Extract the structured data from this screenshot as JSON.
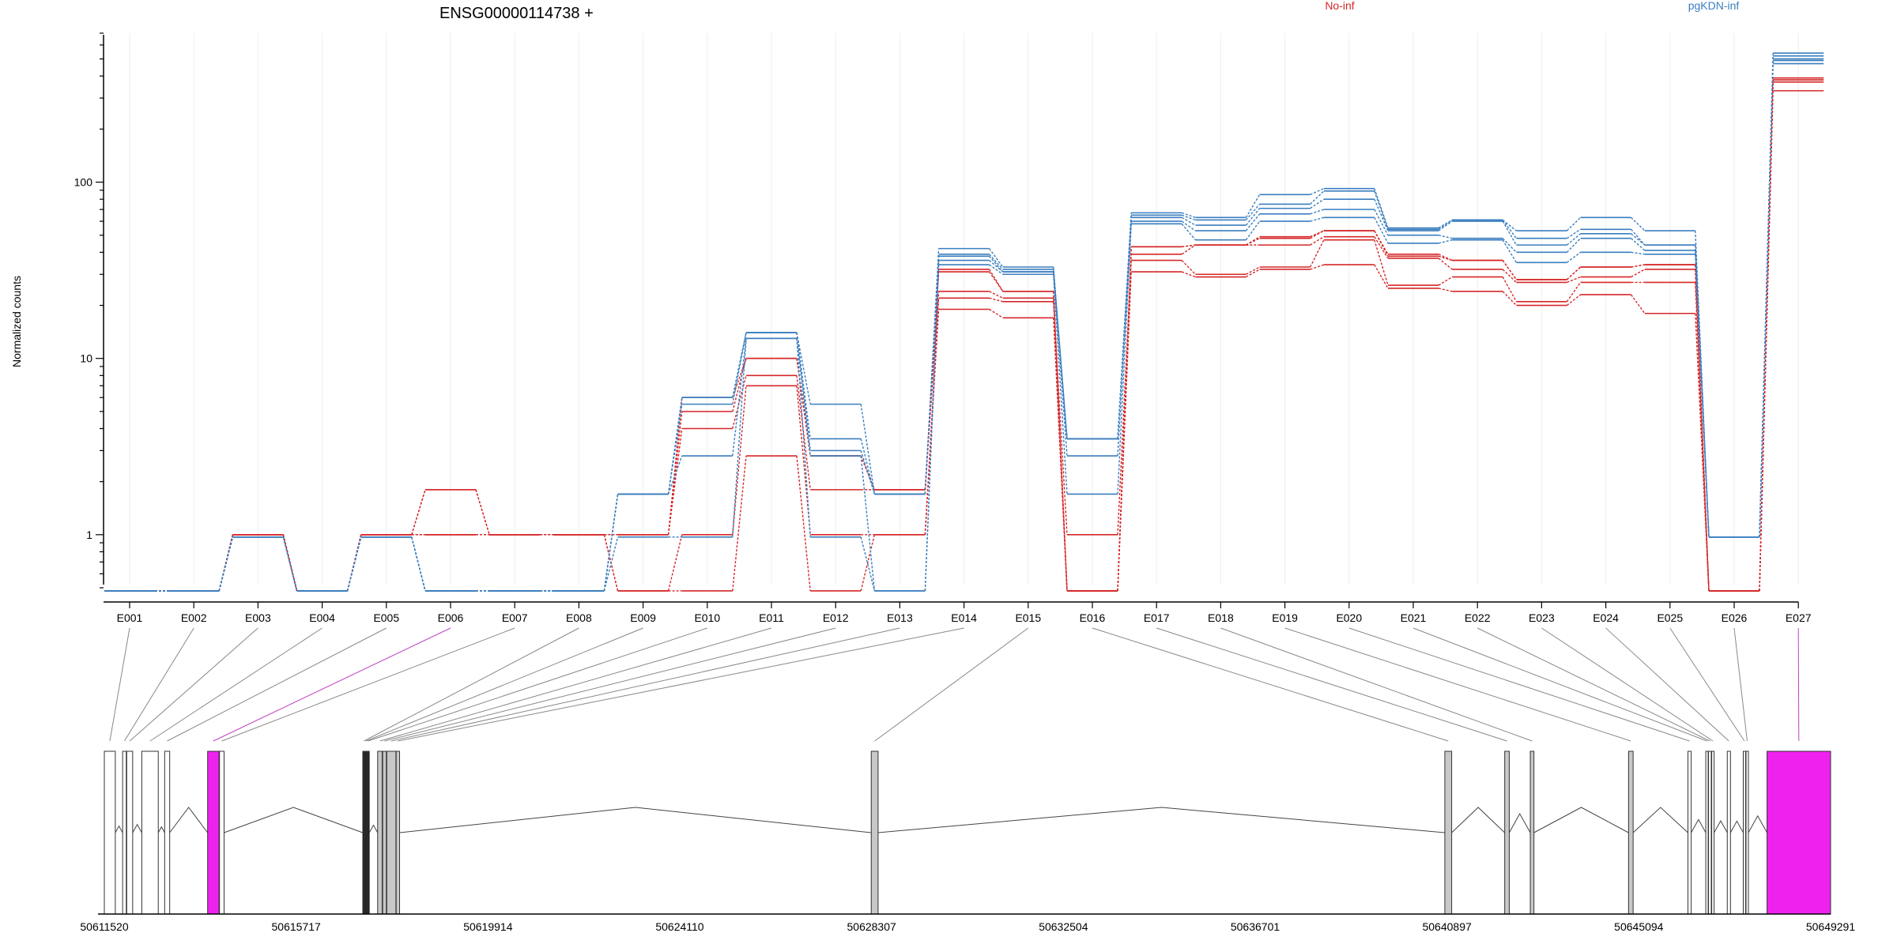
{
  "figure": {
    "title": "ENSG00000114738 +",
    "ylabel": "Normalized counts"
  },
  "legend": [
    {
      "label": "No-inf",
      "color": "#d62728"
    },
    {
      "label": "pgKDN-inf",
      "color": "#3a7ebf"
    }
  ],
  "chart_data": {
    "type": "line",
    "title": "ENSG00000114738 +",
    "xlabel": "",
    "ylabel": "Normalized counts",
    "yscale": "log",
    "ylim": [
      0.5,
      700
    ],
    "yticks": [
      1,
      10,
      100
    ],
    "ytick_labels": [
      "1",
      "10",
      "100"
    ],
    "grid": false,
    "legend_position": "top",
    "categories": [
      "E001",
      "E002",
      "E003",
      "E004",
      "E005",
      "E006",
      "E007",
      "E008",
      "E009",
      "E010",
      "E011",
      "E012",
      "E013",
      "E014",
      "E015",
      "E016",
      "E017",
      "E018",
      "E019",
      "E020",
      "E021",
      "E022",
      "E023",
      "E024",
      "E025",
      "E026",
      "E027"
    ],
    "highlighted_categories": [
      "E006",
      "E027"
    ],
    "series": [
      {
        "name": "No-inf",
        "color": "#d62728",
        "values": [
          0.48,
          0.48,
          1.0,
          0.48,
          1.0,
          1.0,
          1.0,
          1.0,
          0.48,
          0.48,
          2.8,
          0.48,
          1.0,
          19,
          17,
          0.48,
          31,
          29,
          32,
          34,
          25,
          24,
          20,
          23,
          18,
          0.48,
          330
        ]
      },
      {
        "name": "No-inf",
        "color": "#d62728",
        "values": [
          0.48,
          0.48,
          1.0,
          0.48,
          1.0,
          1.0,
          1.0,
          1.0,
          0.48,
          1.0,
          7.0,
          1.0,
          1.0,
          22,
          21,
          1.0,
          36,
          30,
          33,
          47,
          26,
          29,
          21,
          27,
          27,
          0.48,
          370
        ]
      },
      {
        "name": "No-inf",
        "color": "#d62728",
        "values": [
          0.48,
          0.48,
          1.0,
          0.48,
          1.0,
          1.8,
          1.0,
          1.0,
          1.0,
          4.0,
          8.0,
          1.8,
          1.8,
          24,
          22,
          0.48,
          39,
          44,
          44,
          49,
          37,
          32,
          27,
          29,
          32,
          0.48,
          380
        ]
      },
      {
        "name": "No-inf",
        "color": "#d62728",
        "values": [
          0.48,
          0.48,
          1.0,
          0.48,
          1.0,
          1.8,
          1.0,
          1.0,
          1.0,
          5.0,
          10,
          2.8,
          1.8,
          31,
          24,
          0.48,
          43,
          44,
          48,
          53,
          39,
          36,
          28,
          33,
          34,
          0.48,
          390
        ]
      },
      {
        "name": "No-inf",
        "color": "#d62728",
        "values": [
          0.48,
          0.48,
          1.0,
          0.48,
          1.0,
          1.0,
          1.0,
          1.0,
          1.0,
          6.0,
          10,
          2.8,
          1.8,
          32,
          24,
          0.48,
          43,
          44,
          49,
          53,
          38,
          36,
          28,
          33,
          34,
          0.48,
          380
        ]
      },
      {
        "name": "pgKDN-inf",
        "color": "#3a7ebf",
        "values": [
          0.48,
          0.48,
          0.97,
          0.48,
          0.97,
          0.48,
          0.48,
          0.48,
          0.97,
          0.97,
          13,
          0.97,
          0.48,
          34,
          30,
          1.7,
          58,
          47,
          60,
          63,
          45,
          47,
          35,
          40,
          39,
          0.97,
          470
        ]
      },
      {
        "name": "pgKDN-inf",
        "color": "#3a7ebf",
        "values": [
          0.48,
          0.48,
          0.97,
          0.48,
          0.97,
          0.48,
          0.48,
          0.48,
          1.7,
          2.8,
          13,
          2.8,
          0.48,
          36,
          31,
          2.8,
          60,
          53,
          66,
          70,
          50,
          48,
          40,
          48,
          41,
          0.97,
          490
        ]
      },
      {
        "name": "pgKDN-inf",
        "color": "#3a7ebf",
        "values": [
          0.48,
          0.48,
          0.97,
          0.48,
          0.97,
          0.48,
          0.48,
          0.48,
          1.7,
          5.5,
          14,
          3.0,
          1.7,
          38,
          31,
          3.5,
          63,
          57,
          71,
          80,
          53,
          60,
          44,
          51,
          44,
          0.97,
          500
        ]
      },
      {
        "name": "pgKDN-inf",
        "color": "#3a7ebf",
        "values": [
          0.48,
          0.48,
          0.97,
          0.48,
          0.97,
          0.48,
          0.48,
          0.48,
          1.7,
          6.0,
          14,
          3.5,
          1.7,
          39,
          32,
          3.5,
          65,
          61,
          75,
          89,
          54,
          61,
          48,
          54,
          44,
          0.97,
          520
        ]
      },
      {
        "name": "pgKDN-inf",
        "color": "#3a7ebf",
        "values": [
          0.48,
          0.48,
          0.97,
          0.48,
          0.97,
          0.48,
          0.48,
          0.48,
          1.7,
          6.0,
          14,
          5.5,
          1.7,
          42,
          33,
          3.5,
          67,
          63,
          85,
          92,
          55,
          61,
          53,
          63,
          53,
          0.97,
          540
        ]
      }
    ]
  },
  "gene_model": {
    "start": 50611520,
    "end": 50649291,
    "axis_ticks": [
      50611520,
      50615717,
      50619914,
      50624110,
      50628307,
      50632504,
      50636701,
      50640897,
      50645094,
      50649291
    ],
    "exons": [
      {
        "id": "E001",
        "start": 50611520,
        "end": 50611760,
        "style": "plain"
      },
      {
        "id": "E002",
        "start": 50611920,
        "end": 50612000,
        "style": "plain"
      },
      {
        "id": "E003",
        "start": 50612010,
        "end": 50612140,
        "style": "plain"
      },
      {
        "id": "E004",
        "start": 50612340,
        "end": 50612700,
        "style": "plain"
      },
      {
        "id": "E005",
        "start": 50612840,
        "end": 50612950,
        "style": "plain"
      },
      {
        "id": "E006",
        "start": 50613780,
        "end": 50614030,
        "style": "highlight"
      },
      {
        "id": "E007",
        "start": 50614040,
        "end": 50614140,
        "style": "plain"
      },
      {
        "id": "E008",
        "start": 50617175,
        "end": 50617215,
        "style": "dark"
      },
      {
        "id": "E009",
        "start": 50617220,
        "end": 50617255,
        "style": "dark"
      },
      {
        "id": "E010",
        "start": 50617265,
        "end": 50617305,
        "style": "dark"
      },
      {
        "id": "E011",
        "start": 50617500,
        "end": 50617600,
        "style": "shaded"
      },
      {
        "id": "E012",
        "start": 50617610,
        "end": 50617690,
        "style": "shaded"
      },
      {
        "id": "E013",
        "start": 50617700,
        "end": 50617900,
        "style": "shaded"
      },
      {
        "id": "E014",
        "start": 50617905,
        "end": 50617980,
        "style": "shaded"
      },
      {
        "id": "E015",
        "start": 50628300,
        "end": 50628450,
        "style": "shaded"
      },
      {
        "id": "E016",
        "start": 50640850,
        "end": 50641000,
        "style": "shaded"
      },
      {
        "id": "E017",
        "start": 50642160,
        "end": 50642260,
        "style": "shaded"
      },
      {
        "id": "E018",
        "start": 50642720,
        "end": 50642800,
        "style": "shaded"
      },
      {
        "id": "E019",
        "start": 50644870,
        "end": 50644970,
        "style": "shaded"
      },
      {
        "id": "E020",
        "start": 50646170,
        "end": 50646240,
        "style": "plain"
      },
      {
        "id": "E021",
        "start": 50646560,
        "end": 50646600,
        "style": "plain"
      },
      {
        "id": "E022",
        "start": 50646620,
        "end": 50646680,
        "style": "plain"
      },
      {
        "id": "E023",
        "start": 50646690,
        "end": 50646720,
        "style": "plain"
      },
      {
        "id": "E024",
        "start": 50647030,
        "end": 50647100,
        "style": "plain"
      },
      {
        "id": "E025",
        "start": 50647380,
        "end": 50647420,
        "style": "plain"
      },
      {
        "id": "E026",
        "start": 50647440,
        "end": 50647470,
        "style": "plain"
      },
      {
        "id": "E027",
        "start": 50647900,
        "end": 50649291,
        "style": "highlight"
      }
    ]
  },
  "colors": {
    "no_inf": "#d62728",
    "pgkdn_inf": "#3a7ebf",
    "highlight": "#ee22ee",
    "shaded": "#c8c8c8",
    "dark": "#222222"
  }
}
